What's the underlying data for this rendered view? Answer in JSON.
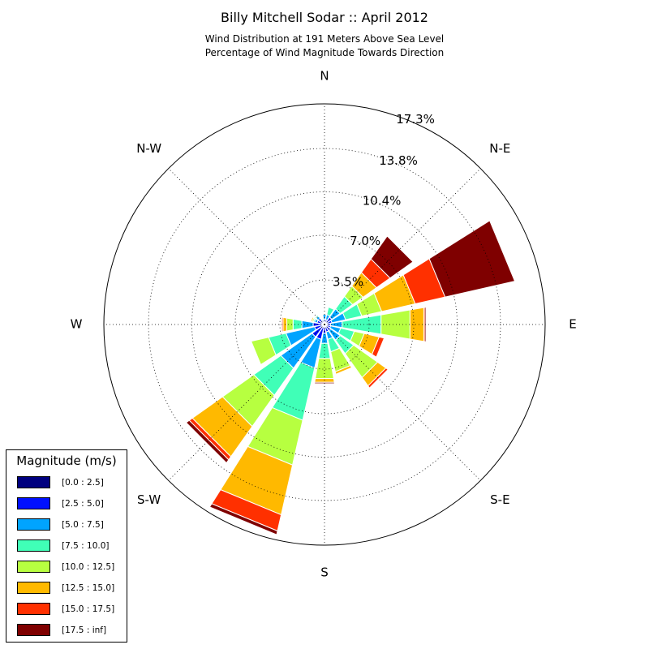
{
  "chart_data": {
    "type": "windrose",
    "title": "Billy Mitchell Sodar :: April 2012",
    "subtitle": [
      "Wind Distribution at 191 Meters Above Sea Level",
      "Percentage of Wind Magnitude Towards Direction"
    ],
    "directions": [
      "N",
      "NNE",
      "NE",
      "ENE",
      "E",
      "ESE",
      "SE",
      "SSE",
      "S",
      "SSW",
      "SW",
      "WSW",
      "W",
      "WNW",
      "NW",
      "NNW"
    ],
    "direction_labels": [
      {
        "label": "N",
        "angle_deg": 0
      },
      {
        "label": "N-E",
        "angle_deg": 45
      },
      {
        "label": "E",
        "angle_deg": 90
      },
      {
        "label": "S-E",
        "angle_deg": 135
      },
      {
        "label": "S",
        "angle_deg": 180
      },
      {
        "label": "S-W",
        "angle_deg": 225
      },
      {
        "label": "W",
        "angle_deg": 270
      },
      {
        "label": "N-W",
        "angle_deg": 315
      }
    ],
    "radial_ticks": [
      3.5,
      7.0,
      10.4,
      13.8,
      17.3
    ],
    "radial_tick_labels": [
      "3.5%",
      "7.0%",
      "10.4%",
      "13.8%",
      "17.3%"
    ],
    "rmax": 17.3,
    "grid": true,
    "legend": {
      "title": "Magnitude (m/s)",
      "position": "lower-left",
      "bins": [
        "[0.0 : 2.5]",
        "[2.5 : 5.0]",
        "[5.0 : 7.5]",
        "[7.5 : 10.0]",
        "[10.0 : 12.5]",
        "[12.5 : 15.0]",
        "[15.0 : 17.5]",
        "[17.5 : inf]"
      ],
      "colors": [
        "#00007f",
        "#0010ff",
        "#00a4ff",
        "#40ffb7",
        "#b7ff40",
        "#ffb900",
        "#ff3000",
        "#7f0000"
      ]
    },
    "series_units": "percent",
    "stacks": [
      [
        0.1,
        0.3,
        0.4,
        0.0,
        0.0,
        0.0,
        0.0,
        0.0
      ],
      [
        0.1,
        0.3,
        0.4,
        0.6,
        0.0,
        0.0,
        0.0,
        0.0
      ],
      [
        0.1,
        0.6,
        0.8,
        1.2,
        1.0,
        1.3,
        1.3,
        2.2
      ],
      [
        0.1,
        0.5,
        1.1,
        1.3,
        1.6,
        2.7,
        2.4,
        5.6
      ],
      [
        0.1,
        0.4,
        0.9,
        3.1,
        2.3,
        1.1,
        0.1,
        0.1
      ],
      [
        0.1,
        0.4,
        0.8,
        1.1,
        0.8,
        1.2,
        0.4,
        0.0
      ],
      [
        0.1,
        0.5,
        0.9,
        1.3,
        2.3,
        0.8,
        0.2,
        0.0
      ],
      [
        0.1,
        0.5,
        0.6,
        1.0,
        1.6,
        0.2,
        0.0,
        0.0
      ],
      [
        0.1,
        0.6,
        0.8,
        1.2,
        1.6,
        0.3,
        0.0,
        0.1
      ],
      [
        0.1,
        1.1,
        2.3,
        4.2,
        3.6,
        4.0,
        1.3,
        0.3
      ],
      [
        0.1,
        1.1,
        3.0,
        2.6,
        3.0,
        2.9,
        0.3,
        0.3
      ],
      [
        0.1,
        0.7,
        2.3,
        1.4,
        1.4,
        0.0,
        0.0,
        0.0
      ],
      [
        0.1,
        0.8,
        0.9,
        0.7,
        0.5,
        0.3,
        0.1,
        0.0
      ],
      [
        0.1,
        0.5,
        0.2,
        0.1,
        0.1,
        0.1,
        0.0,
        0.0
      ],
      [
        0.1,
        0.5,
        0.2,
        0.1,
        0.0,
        0.0,
        0.0,
        0.0
      ],
      [
        0.1,
        0.2,
        0.1,
        0.0,
        0.0,
        0.0,
        0.0,
        0.0
      ]
    ]
  }
}
